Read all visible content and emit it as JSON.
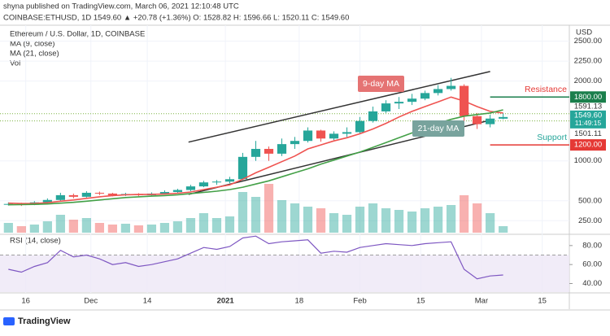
{
  "header": {
    "line1": "shyna published on TradingView.com, March 06, 2021 12:10:48 UTC",
    "line2": "COINBASE:ETHUSD, 1D  1549.60  ▲ +20.78 (+1.36%)  O: 1528.82  H: 1596.66  L: 1520.11  C: 1549.60"
  },
  "footer": "TradingView",
  "chart_data": {
    "type": "candlestick",
    "title": "Ethereum / U.S. Dollar, 1D, COINBASE",
    "legend": [
      "MA (9, close)",
      "MA (21, close)",
      "Vol"
    ],
    "currency": "USD",
    "x": [
      1,
      4,
      7,
      10,
      13,
      16,
      19,
      22,
      25,
      28,
      31,
      34,
      37,
      40,
      43,
      46,
      49,
      52,
      55,
      58,
      61,
      64,
      67,
      70,
      73,
      76,
      79,
      82,
      85,
      88,
      91,
      94,
      97,
      100,
      103,
      106,
      109,
      112,
      115
    ],
    "open": [
      455,
      460,
      450,
      480,
      510,
      570,
      550,
      600,
      590,
      570,
      585,
      570,
      590,
      610,
      635,
      680,
      730,
      740,
      770,
      1050,
      1150,
      1090,
      1210,
      1250,
      1380,
      1280,
      1340,
      1360,
      1500,
      1620,
      1720,
      1740,
      1780,
      1850,
      1900,
      1940,
      1560,
      1460,
      1528.82
    ],
    "high": [
      480,
      475,
      495,
      530,
      600,
      590,
      620,
      615,
      600,
      600,
      595,
      605,
      630,
      650,
      700,
      750,
      760,
      800,
      1100,
      1250,
      1180,
      1280,
      1300,
      1420,
      1390,
      1370,
      1420,
      1550,
      1680,
      1760,
      1800,
      1840,
      1880,
      1950,
      2040,
      1960,
      1600,
      1580,
      1596.66
    ],
    "low": [
      440,
      435,
      445,
      470,
      500,
      530,
      540,
      570,
      555,
      560,
      560,
      565,
      580,
      600,
      620,
      670,
      700,
      720,
      760,
      1000,
      1000,
      1060,
      1150,
      1230,
      1240,
      1260,
      1300,
      1340,
      1480,
      1600,
      1650,
      1700,
      1760,
      1820,
      1880,
      1500,
      1400,
      1420,
      1520.11
    ],
    "close": [
      460,
      450,
      480,
      510,
      570,
      550,
      600,
      590,
      570,
      585,
      570,
      590,
      610,
      635,
      680,
      730,
      740,
      770,
      1050,
      1150,
      1090,
      1210,
      1250,
      1380,
      1280,
      1340,
      1360,
      1500,
      1620,
      1720,
      1740,
      1780,
      1850,
      1900,
      1940,
      1560,
      1460,
      1530,
      1549.6
    ],
    "up_color": "#26a69a",
    "down_color": "#ef5350",
    "series": [
      {
        "name": "9-day MA",
        "color": "#ef5350",
        "values": [
          470,
          465,
          466,
          475,
          495,
          510,
          530,
          550,
          565,
          575,
          578,
          580,
          585,
          595,
          610,
          640,
          670,
          700,
          770,
          850,
          920,
          990,
          1060,
          1150,
          1200,
          1250,
          1290,
          1340,
          1400,
          1470,
          1550,
          1620,
          1680,
          1740,
          1800,
          1750,
          1680,
          1620,
          1600
        ]
      },
      {
        "name": "21-day MA",
        "color": "#43a047",
        "values": [
          450,
          452,
          455,
          460,
          470,
          480,
          495,
          510,
          525,
          540,
          550,
          558,
          565,
          575,
          590,
          605,
          620,
          640,
          670,
          710,
          750,
          800,
          850,
          900,
          960,
          1010,
          1060,
          1110,
          1170,
          1230,
          1290,
          1350,
          1410,
          1470,
          1520,
          1560,
          1580,
          1600,
          1640
        ]
      }
    ],
    "volume": [
      60,
      40,
      50,
      70,
      110,
      80,
      90,
      60,
      50,
      55,
      45,
      50,
      60,
      70,
      90,
      120,
      90,
      100,
      250,
      220,
      300,
      200,
      180,
      160,
      150,
      120,
      110,
      160,
      180,
      150,
      140,
      130,
      150,
      160,
      170,
      230,
      180,
      120,
      40
    ],
    "xlim": [
      0,
      125
    ],
    "xticks": [
      {
        "value": 5,
        "label": "16"
      },
      {
        "value": 20,
        "label": "Dec"
      },
      {
        "value": 33,
        "label": "14"
      },
      {
        "value": 51,
        "label": "2021"
      },
      {
        "value": 68,
        "label": "18"
      },
      {
        "value": 82,
        "label": "Feb"
      },
      {
        "value": 96,
        "label": "15"
      },
      {
        "value": 110,
        "label": "Mar"
      },
      {
        "value": 124,
        "label": "15"
      }
    ],
    "ylim": [
      100,
      2700
    ],
    "yticks": [
      {
        "value": 250,
        "label": "250.00"
      },
      {
        "value": 500,
        "label": "500.00"
      },
      {
        "value": 1000,
        "label": "1000.00"
      },
      {
        "value": 2000,
        "label": "2000.00"
      },
      {
        "value": 2250,
        "label": "2250.00"
      },
      {
        "value": 2500,
        "label": "2500.00"
      }
    ],
    "channel": {
      "x": [
        42.5,
        112
      ],
      "upper": [
        1235,
        2120
      ],
      "lower": [
        580,
        1510
      ]
    },
    "levels": [
      {
        "value": 1800,
        "label": "1800.00",
        "name": "Resistance",
        "color": "#e53935",
        "tag_color": "#1b7f4c",
        "x": [
          112,
          125
        ]
      },
      {
        "value": 1200,
        "label": "1200.00",
        "name": "Support",
        "color": "#26a69a",
        "tag_color": "#e53935",
        "x": [
          112,
          125
        ]
      }
    ],
    "price_tags": [
      {
        "value": 1591.13,
        "label": "1591.13"
      },
      {
        "value": 1549.6,
        "label": "1549.60",
        "countdown": "11:49:15"
      },
      {
        "value": 1501.11,
        "label": "1501.11"
      }
    ],
    "rsi": {
      "title": "RSI (14, close)",
      "color": "#7e57c2",
      "values": [
        55,
        52,
        58,
        62,
        75,
        68,
        70,
        66,
        60,
        62,
        58,
        60,
        63,
        66,
        72,
        78,
        76,
        79,
        88,
        90,
        82,
        84,
        85,
        86,
        72,
        74,
        73,
        78,
        80,
        82,
        81,
        80,
        82,
        83,
        84,
        55,
        45,
        48,
        49
      ],
      "ylim": [
        31,
        91
      ],
      "band": [
        30,
        70
      ],
      "yticks": [
        {
          "value": 40,
          "label": "40.00"
        },
        {
          "value": 60,
          "label": "60.00"
        },
        {
          "value": 80,
          "label": "80.00"
        }
      ]
    }
  }
}
